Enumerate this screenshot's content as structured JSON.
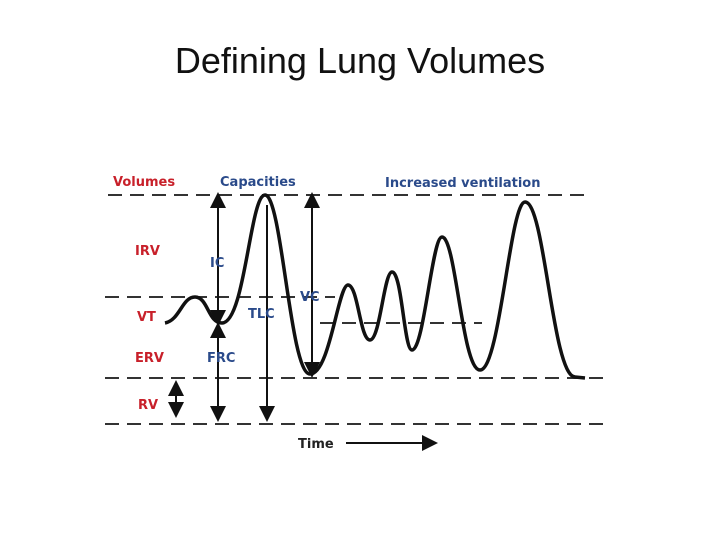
{
  "title": "Defining Lung Volumes",
  "diagram": {
    "volumes_header": "Volumes",
    "capacities_header": "Capacities",
    "increased_ventilation": "Increased ventilation",
    "volumes": [
      "IRV",
      "VT",
      "ERV",
      "RV"
    ],
    "capacities": [
      "IC",
      "TLC",
      "VC",
      "FRC"
    ],
    "time_label": "Time"
  }
}
